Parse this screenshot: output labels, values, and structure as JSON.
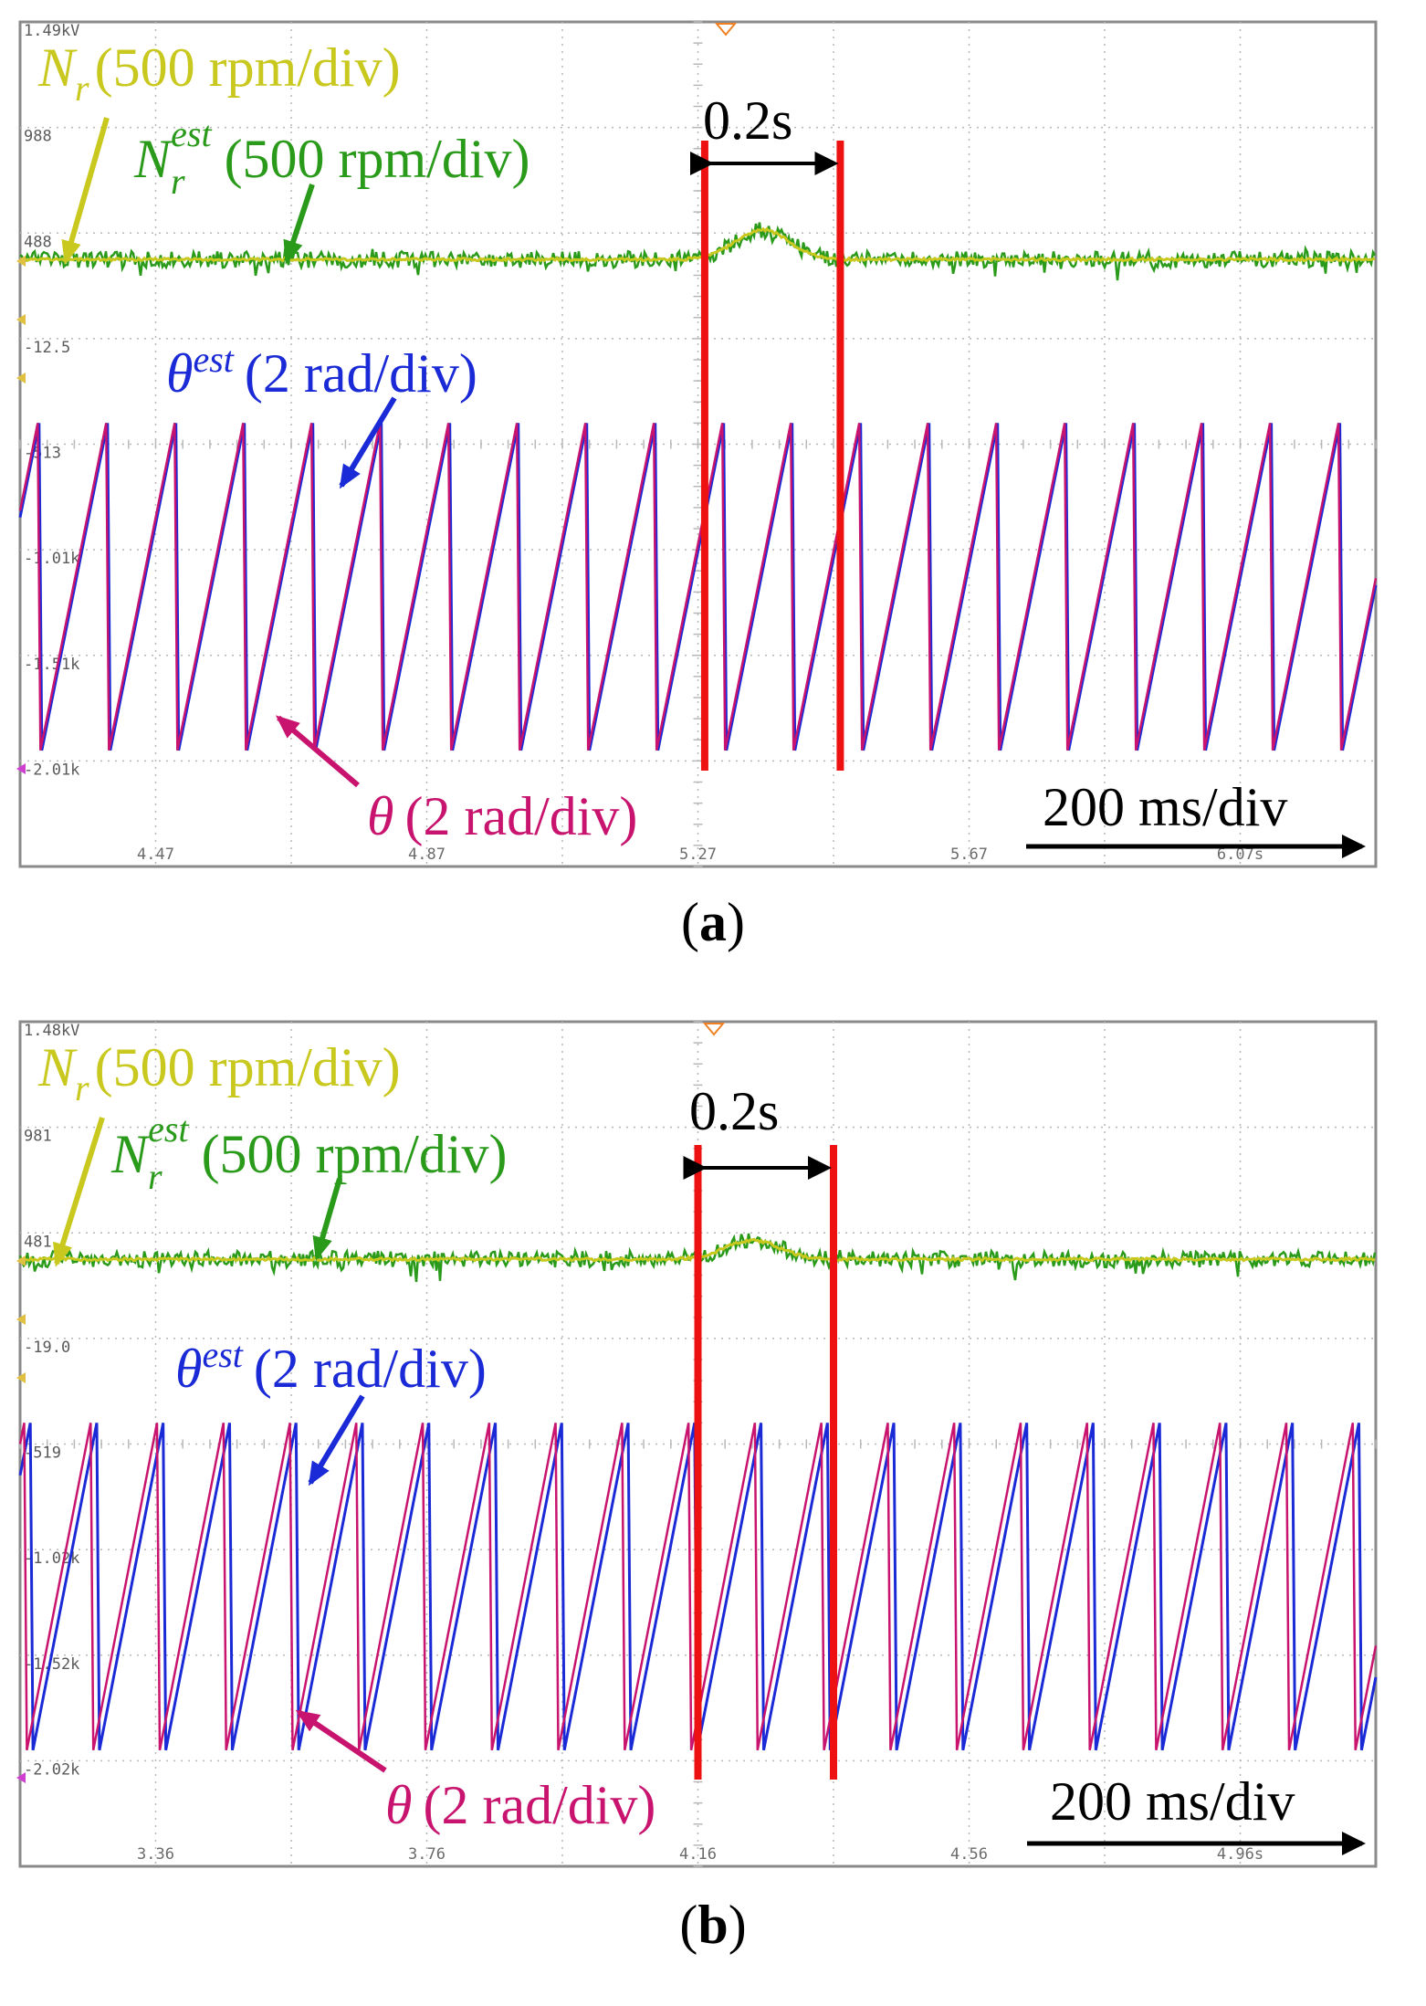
{
  "colors": {
    "nr": "#c8c81e",
    "nr_est": "#2a9a1a",
    "theta_est": "#1a2ad6",
    "theta": "#c8146e",
    "marker": "#ee1111",
    "grid": "#b8b8b8",
    "frame": "#8a8a8a"
  },
  "chart_data": [
    {
      "panel": "a",
      "type": "line",
      "caption": "a",
      "y_tick_labels": [
        "1.49kV",
        "988",
        "488",
        "-12.5",
        "-513",
        "-1.01k",
        "-1.51k",
        "-2.01k"
      ],
      "x_tick_labels": [
        "4.47",
        "4.87",
        "5.27",
        "5.67",
        "6.07s"
      ],
      "x_range_s": [
        4.27,
        6.27
      ],
      "timebase": "200 ms/div",
      "interval_label": "0.2s",
      "interval_s": [
        5.28,
        5.48
      ],
      "speed_trace": {
        "baseline_div": 2.25,
        "bump_center_s": 5.365,
        "bump_div": 0.28
      },
      "theta_trace": {
        "period_s": 0.101,
        "phase_s": 4.3,
        "low_div": 6.9,
        "high_div": 3.8,
        "est_lag_s": 0.002
      },
      "labels": {
        "nr_main": "N",
        "nr_sub": "r",
        "nr_text": "(500 rpm/div)",
        "nrest_main": "N",
        "nrest_sub": "r",
        "nrest_sup": "est",
        "nrest_text": "(500 rpm/div)",
        "thetaest_main": "θ",
        "thetaest_sup": "est",
        "thetaest_text": "(2 rad/div)",
        "theta_main": "θ",
        "theta_text": "(2 rad/div)"
      }
    },
    {
      "panel": "b",
      "type": "line",
      "caption": "b",
      "y_tick_labels": [
        "1.48kV",
        "981",
        "481",
        "-19.0",
        "-519",
        "-1.02k",
        "-1.52k",
        "-2.02k"
      ],
      "x_tick_labels": [
        "3.36",
        "3.76",
        "4.16",
        "4.56",
        "4.96s"
      ],
      "x_range_s": [
        3.16,
        5.16
      ],
      "timebase": "200 ms/div",
      "interval_label": "0.2s",
      "interval_s": [
        4.16,
        4.36
      ],
      "speed_trace": {
        "baseline_div": 2.25,
        "bump_center_s": 4.24,
        "bump_div": 0.18
      },
      "theta_trace": {
        "period_s": 0.098,
        "phase_s": 3.17,
        "low_div": 6.9,
        "high_div": 3.8,
        "est_lag_s": 0.009
      },
      "labels": {
        "nr_main": "N",
        "nr_sub": "r",
        "nr_text": "(500 rpm/div)",
        "nrest_main": "N",
        "nrest_sub": "r",
        "nrest_sup": "est",
        "nrest_text": "(500 rpm/div)",
        "thetaest_main": "θ",
        "thetaest_sup": "est",
        "thetaest_text": "(2 rad/div)",
        "theta_main": "θ",
        "theta_text": "(2 rad/div)"
      }
    }
  ]
}
